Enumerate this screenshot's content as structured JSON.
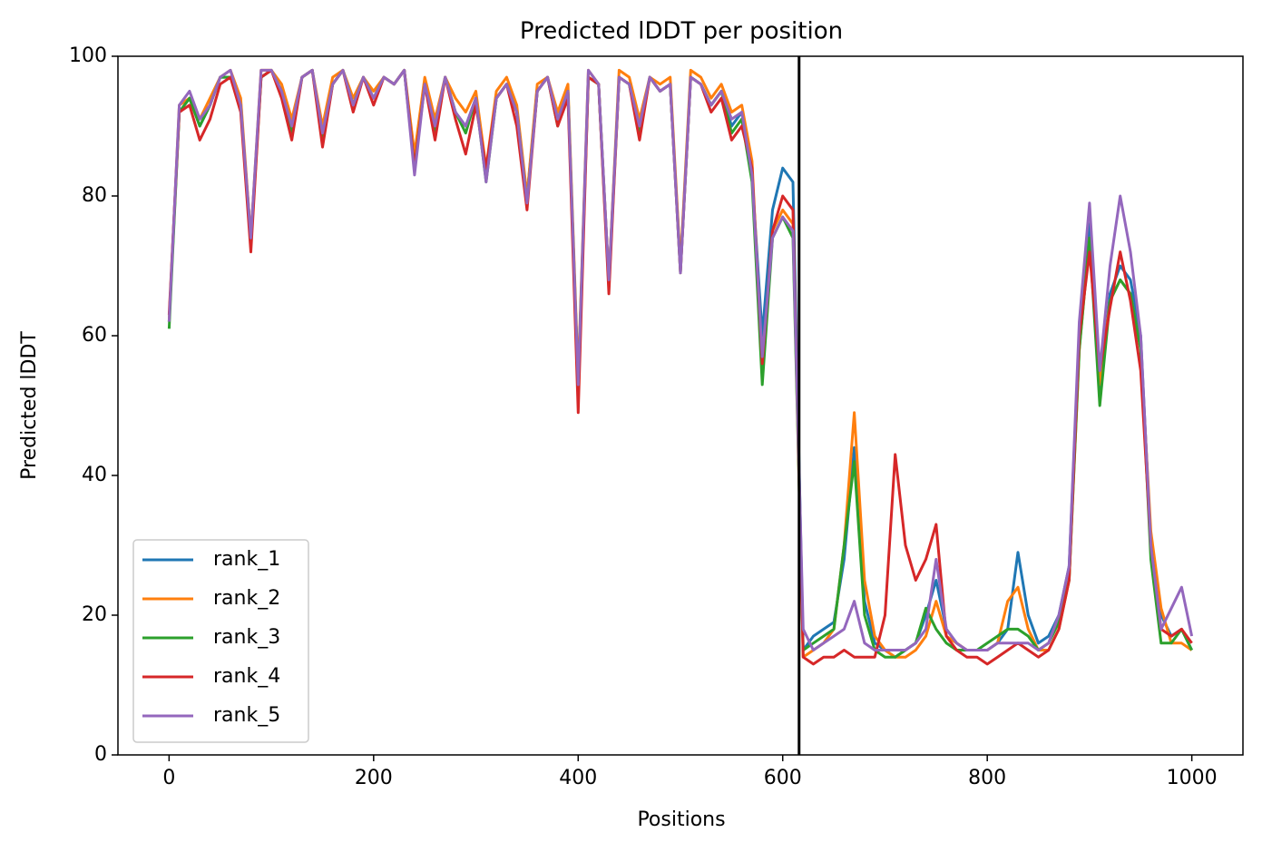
{
  "chart_data": {
    "type": "line",
    "title": "Predicted lDDT per position",
    "xlabel": "Positions",
    "ylabel": "Predicted lDDT",
    "xlim": [
      -50,
      1050
    ],
    "xticks": [
      0,
      200,
      400,
      600,
      800,
      1000
    ],
    "ylim": [
      0,
      100
    ],
    "yticks": [
      0,
      20,
      40,
      60,
      80,
      100
    ],
    "vline": 616,
    "vline_color": "#000000",
    "legend": "lower left",
    "x": [
      0,
      10,
      20,
      30,
      40,
      50,
      60,
      70,
      80,
      90,
      100,
      110,
      120,
      130,
      140,
      150,
      160,
      170,
      180,
      190,
      200,
      210,
      220,
      230,
      240,
      250,
      260,
      270,
      280,
      290,
      300,
      310,
      320,
      330,
      340,
      350,
      360,
      370,
      380,
      390,
      400,
      410,
      420,
      430,
      440,
      450,
      460,
      470,
      480,
      490,
      500,
      510,
      520,
      530,
      540,
      550,
      560,
      570,
      580,
      590,
      600,
      610,
      620,
      630,
      640,
      650,
      660,
      670,
      680,
      690,
      700,
      710,
      720,
      730,
      740,
      750,
      760,
      770,
      780,
      790,
      800,
      810,
      820,
      830,
      840,
      850,
      860,
      870,
      880,
      890,
      900,
      910,
      920,
      930,
      940,
      950,
      960,
      970,
      980,
      990,
      1000
    ],
    "series": [
      {
        "name": "rank_1",
        "color": "#1f77b4",
        "values": [
          62,
          92,
          94,
          90,
          93,
          97,
          97,
          93,
          74,
          97,
          98,
          95,
          90,
          97,
          98,
          89,
          96,
          98,
          93,
          97,
          94,
          97,
          96,
          98,
          85,
          96,
          90,
          97,
          92,
          90,
          94,
          83,
          94,
          96,
          92,
          80,
          95,
          97,
          91,
          95,
          52,
          97,
          96,
          68,
          97,
          96,
          90,
          97,
          95,
          96,
          70,
          97,
          96,
          93,
          95,
          90,
          92,
          83,
          60,
          78,
          84,
          82,
          15,
          17,
          18,
          19,
          28,
          44,
          22,
          16,
          15,
          14,
          15,
          16,
          20,
          25,
          18,
          16,
          15,
          15,
          15,
          16,
          18,
          29,
          20,
          16,
          17,
          20,
          27,
          60,
          76,
          52,
          66,
          70,
          68,
          60,
          30,
          20,
          17,
          18,
          15
        ]
      },
      {
        "name": "rank_2",
        "color": "#ff7f0e",
        "values": [
          62,
          93,
          94,
          91,
          94,
          97,
          98,
          94,
          74,
          98,
          98,
          96,
          91,
          97,
          98,
          90,
          97,
          98,
          94,
          97,
          95,
          97,
          96,
          98,
          86,
          97,
          91,
          97,
          94,
          92,
          95,
          84,
          95,
          97,
          93,
          80,
          96,
          97,
          92,
          96,
          54,
          98,
          96,
          68,
          98,
          97,
          91,
          97,
          96,
          97,
          70,
          98,
          97,
          94,
          96,
          92,
          93,
          85,
          55,
          75,
          78,
          76,
          14,
          15,
          16,
          18,
          30,
          49,
          25,
          17,
          15,
          14,
          14,
          15,
          17,
          22,
          17,
          16,
          15,
          15,
          15,
          16,
          22,
          24,
          18,
          15,
          15,
          18,
          25,
          58,
          74,
          53,
          65,
          68,
          66,
          58,
          32,
          21,
          16,
          16,
          15
        ]
      },
      {
        "name": "rank_3",
        "color": "#2ca02c",
        "values": [
          61,
          92,
          94,
          90,
          93,
          97,
          97,
          93,
          73,
          97,
          98,
          95,
          89,
          97,
          98,
          88,
          96,
          98,
          93,
          97,
          94,
          97,
          96,
          98,
          84,
          96,
          89,
          97,
          92,
          89,
          94,
          82,
          94,
          96,
          92,
          79,
          95,
          97,
          90,
          95,
          53,
          97,
          96,
          67,
          97,
          96,
          89,
          97,
          95,
          96,
          69,
          97,
          96,
          93,
          95,
          89,
          91,
          82,
          53,
          74,
          77,
          74,
          15,
          16,
          17,
          18,
          30,
          42,
          20,
          15,
          14,
          14,
          15,
          16,
          21,
          18,
          16,
          15,
          15,
          15,
          16,
          17,
          18,
          18,
          17,
          15,
          16,
          19,
          25,
          58,
          74,
          50,
          65,
          68,
          66,
          58,
          28,
          16,
          16,
          18,
          15
        ]
      },
      {
        "name": "rank_4",
        "color": "#d62728",
        "values": [
          63,
          92,
          93,
          88,
          91,
          96,
          97,
          92,
          72,
          97,
          98,
          94,
          88,
          97,
          98,
          87,
          96,
          98,
          92,
          97,
          93,
          97,
          96,
          98,
          84,
          96,
          88,
          97,
          91,
          86,
          93,
          84,
          94,
          96,
          90,
          78,
          95,
          97,
          90,
          94,
          49,
          97,
          96,
          66,
          97,
          96,
          88,
          97,
          95,
          96,
          69,
          97,
          96,
          92,
          94,
          88,
          90,
          84,
          56,
          75,
          80,
          78,
          14,
          13,
          14,
          14,
          15,
          14,
          14,
          14,
          20,
          43,
          30,
          25,
          28,
          33,
          17,
          15,
          14,
          14,
          13,
          14,
          15,
          16,
          15,
          14,
          15,
          18,
          25,
          60,
          72,
          55,
          64,
          72,
          65,
          55,
          30,
          18,
          17,
          18,
          16
        ]
      },
      {
        "name": "rank_5",
        "color": "#9467bd",
        "values": [
          62,
          93,
          95,
          91,
          93,
          97,
          98,
          93,
          74,
          98,
          98,
          95,
          90,
          97,
          98,
          89,
          96,
          98,
          93,
          97,
          94,
          97,
          96,
          98,
          83,
          96,
          90,
          97,
          92,
          90,
          94,
          82,
          94,
          96,
          92,
          79,
          95,
          97,
          91,
          95,
          53,
          98,
          96,
          68,
          97,
          96,
          90,
          97,
          95,
          96,
          69,
          97,
          96,
          93,
          95,
          91,
          92,
          83,
          57,
          74,
          77,
          75,
          18,
          15,
          16,
          17,
          18,
          22,
          16,
          15,
          15,
          15,
          15,
          16,
          18,
          28,
          18,
          16,
          15,
          15,
          15,
          16,
          16,
          16,
          16,
          15,
          16,
          20,
          27,
          62,
          79,
          55,
          70,
          80,
          72,
          60,
          30,
          18,
          21,
          24,
          17
        ]
      }
    ]
  }
}
